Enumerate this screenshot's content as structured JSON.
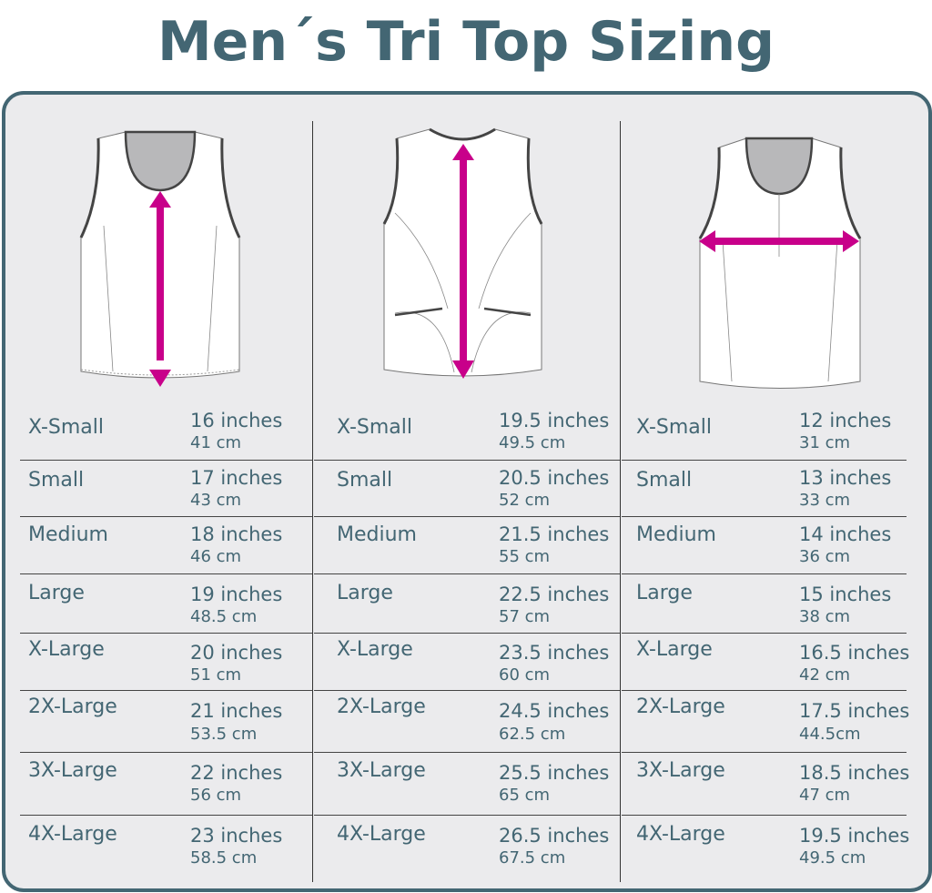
{
  "title": "Men´s Tri Top Sizing",
  "colors": {
    "text": "#436673",
    "panel_bg": "#ebebed",
    "arrow": "#c8008a",
    "neck": "#b8b8ba"
  },
  "columns": [
    {
      "measurement_icon": "vertical-arrow-front-length",
      "rows": [
        {
          "size": "X-Small",
          "inches": "16 inches",
          "cm": "41 cm"
        },
        {
          "size": "Small",
          "inches": "17 inches",
          "cm": "43 cm"
        },
        {
          "size": "Medium",
          "inches": "18 inches",
          "cm": "46 cm"
        },
        {
          "size": "Large",
          "inches": "19 inches",
          "cm": "48.5 cm"
        },
        {
          "size": "X-Large",
          "inches": "20 inches",
          "cm": "51 cm"
        },
        {
          "size": "2X-Large",
          "inches": "21 inches",
          "cm": "53.5 cm"
        },
        {
          "size": "3X-Large",
          "inches": "22 inches",
          "cm": "56 cm"
        },
        {
          "size": "4X-Large",
          "inches": "23 inches",
          "cm": "58.5 cm"
        }
      ]
    },
    {
      "measurement_icon": "vertical-arrow-back-length",
      "rows": [
        {
          "size": "X-Small",
          "inches": "19.5 inches",
          "cm": "49.5 cm"
        },
        {
          "size": "Small",
          "inches": "20.5 inches",
          "cm": "52 cm"
        },
        {
          "size": "Medium",
          "inches": "21.5 inches",
          "cm": "55 cm"
        },
        {
          "size": "Large",
          "inches": "22.5 inches",
          "cm": "57 cm"
        },
        {
          "size": "X-Large",
          "inches": "23.5 inches",
          "cm": "60 cm"
        },
        {
          "size": "2X-Large",
          "inches": "24.5 inches",
          "cm": "62.5 cm"
        },
        {
          "size": "3X-Large",
          "inches": "25.5 inches",
          "cm": "65 cm"
        },
        {
          "size": "4X-Large",
          "inches": "26.5 inches",
          "cm": "67.5 cm"
        }
      ]
    },
    {
      "measurement_icon": "horizontal-arrow-chest-width",
      "rows": [
        {
          "size": "X-Small",
          "inches": "12 inches",
          "cm": "31 cm"
        },
        {
          "size": "Small",
          "inches": "13 inches",
          "cm": "33 cm"
        },
        {
          "size": "Medium",
          "inches": "14 inches",
          "cm": "36 cm"
        },
        {
          "size": "Large",
          "inches": "15 inches",
          "cm": "38 cm"
        },
        {
          "size": "X-Large",
          "inches": "16.5 inches",
          "cm": "42 cm"
        },
        {
          "size": "2X-Large",
          "inches": "17.5 inches",
          "cm": "44.5cm"
        },
        {
          "size": "3X-Large",
          "inches": "18.5 inches",
          "cm": "47 cm"
        },
        {
          "size": "4X-Large",
          "inches": "19.5 inches",
          "cm": "49.5 cm"
        }
      ]
    }
  ]
}
